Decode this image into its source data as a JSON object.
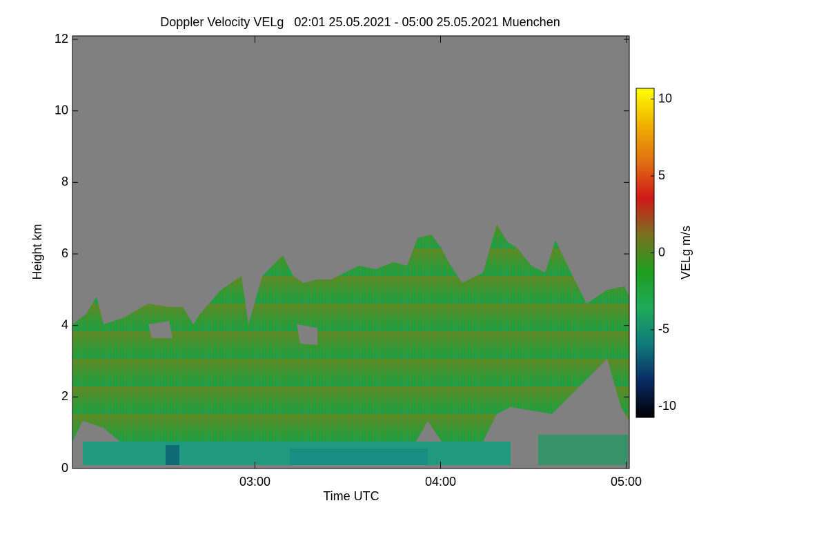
{
  "chart_data": {
    "type": "heatmap",
    "title": "Doppler Velocity VELg   02:01 25.05.2021 - 05:00 25.05.2021 Muenchen",
    "x_label": "Time UTC",
    "y_label": "Height km",
    "colorbar_label": "VELg m/s",
    "xlim": [
      2.0167,
      5.0167
    ],
    "xticks": [
      {
        "value": 3,
        "label": "03:00"
      },
      {
        "value": 4,
        "label": "04:00"
      },
      {
        "value": 5,
        "label": "05:00"
      }
    ],
    "ylim": [
      0,
      12
    ],
    "yticks": [
      0,
      2,
      4,
      6,
      8,
      10,
      12
    ],
    "clim": [
      -10.7,
      10.7
    ],
    "cticks": [
      -10,
      -5,
      0,
      5,
      10
    ],
    "colorscale": [
      "#000000",
      "#0a2a66",
      "#0e7a7a",
      "#1faa5a",
      "#1e9e1e",
      "#7a7020",
      "#d01818",
      "#e07010",
      "#f0b000",
      "#ffff00"
    ],
    "background_color": "#808080"
  }
}
